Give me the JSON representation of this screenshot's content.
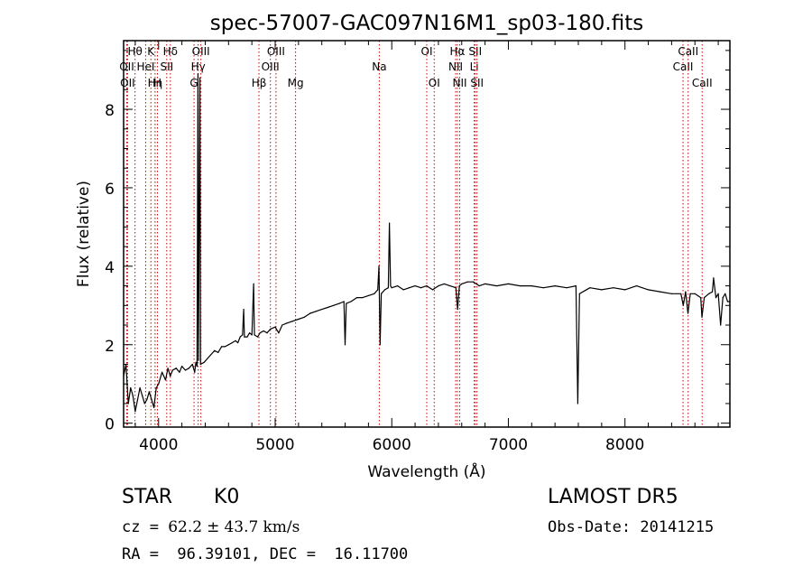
{
  "chart_data": {
    "type": "line",
    "title": "spec-57007-GAC097N16M1_sp03-180.fits",
    "xlabel": "Wavelength (Å)",
    "ylabel": "Flux (relative)",
    "xlim": [
      3700,
      8900
    ],
    "ylim": [
      -0.1,
      9.75
    ],
    "xticks": [
      4000,
      5000,
      6000,
      7000,
      8000
    ],
    "yticks": [
      0,
      2,
      4,
      6,
      8
    ],
    "grid": false,
    "line_color": "#000000",
    "marker_color": "#cc0000",
    "series": [
      {
        "values": [
          [
            3700,
            1.2
          ],
          [
            3720,
            1.5
          ],
          [
            3740,
            0.5
          ],
          [
            3760,
            0.9
          ],
          [
            3780,
            0.7
          ],
          [
            3800,
            0.3
          ],
          [
            3820,
            0.6
          ],
          [
            3840,
            0.9
          ],
          [
            3860,
            0.7
          ],
          [
            3880,
            0.5
          ],
          [
            3900,
            0.6
          ],
          [
            3920,
            0.8
          ],
          [
            3940,
            0.6
          ],
          [
            3960,
            0.4
          ],
          [
            3980,
            0.9
          ],
          [
            4000,
            1.0
          ],
          [
            4030,
            1.3
          ],
          [
            4060,
            1.1
          ],
          [
            4080,
            1.4
          ],
          [
            4100,
            1.2
          ],
          [
            4120,
            1.35
          ],
          [
            4150,
            1.4
          ],
          [
            4180,
            1.3
          ],
          [
            4200,
            1.45
          ],
          [
            4230,
            1.35
          ],
          [
            4260,
            1.4
          ],
          [
            4290,
            1.5
          ],
          [
            4310,
            1.3
          ],
          [
            4320,
            1.55
          ],
          [
            4330,
            1.45
          ],
          [
            4338,
            8.9
          ],
          [
            4342,
            1.6
          ],
          [
            4355,
            8.8
          ],
          [
            4360,
            1.5
          ],
          [
            4390,
            1.55
          ],
          [
            4420,
            1.65
          ],
          [
            4450,
            1.75
          ],
          [
            4480,
            1.85
          ],
          [
            4510,
            1.8
          ],
          [
            4540,
            1.95
          ],
          [
            4570,
            1.95
          ],
          [
            4600,
            2.0
          ],
          [
            4630,
            2.05
          ],
          [
            4660,
            2.1
          ],
          [
            4680,
            2.05
          ],
          [
            4700,
            2.2
          ],
          [
            4720,
            2.25
          ],
          [
            4730,
            2.9
          ],
          [
            4736,
            2.2
          ],
          [
            4760,
            2.2
          ],
          [
            4780,
            2.3
          ],
          [
            4800,
            2.25
          ],
          [
            4815,
            3.55
          ],
          [
            4822,
            2.25
          ],
          [
            4850,
            2.2
          ],
          [
            4870,
            2.3
          ],
          [
            4900,
            2.35
          ],
          [
            4930,
            2.3
          ],
          [
            4960,
            2.4
          ],
          [
            5000,
            2.45
          ],
          [
            5030,
            2.3
          ],
          [
            5060,
            2.5
          ],
          [
            5100,
            2.55
          ],
          [
            5150,
            2.6
          ],
          [
            5200,
            2.65
          ],
          [
            5250,
            2.7
          ],
          [
            5300,
            2.8
          ],
          [
            5350,
            2.85
          ],
          [
            5400,
            2.9
          ],
          [
            5450,
            2.95
          ],
          [
            5500,
            3.0
          ],
          [
            5550,
            3.05
          ],
          [
            5590,
            3.1
          ],
          [
            5600,
            2.0
          ],
          [
            5610,
            3.05
          ],
          [
            5650,
            3.1
          ],
          [
            5700,
            3.2
          ],
          [
            5750,
            3.2
          ],
          [
            5800,
            3.25
          ],
          [
            5850,
            3.3
          ],
          [
            5880,
            3.4
          ],
          [
            5890,
            4.0
          ],
          [
            5900,
            2.0
          ],
          [
            5910,
            3.3
          ],
          [
            5940,
            3.4
          ],
          [
            5970,
            3.45
          ],
          [
            5980,
            5.1
          ],
          [
            5990,
            3.5
          ],
          [
            6000,
            3.45
          ],
          [
            6050,
            3.5
          ],
          [
            6100,
            3.4
          ],
          [
            6150,
            3.45
          ],
          [
            6200,
            3.5
          ],
          [
            6250,
            3.45
          ],
          [
            6300,
            3.5
          ],
          [
            6350,
            3.4
          ],
          [
            6400,
            3.5
          ],
          [
            6450,
            3.55
          ],
          [
            6500,
            3.5
          ],
          [
            6550,
            3.45
          ],
          [
            6565,
            2.9
          ],
          [
            6580,
            3.5
          ],
          [
            6600,
            3.55
          ],
          [
            6650,
            3.6
          ],
          [
            6700,
            3.6
          ],
          [
            6750,
            3.5
          ],
          [
            6800,
            3.55
          ],
          [
            6900,
            3.5
          ],
          [
            7000,
            3.55
          ],
          [
            7100,
            3.5
          ],
          [
            7200,
            3.5
          ],
          [
            7300,
            3.45
          ],
          [
            7400,
            3.5
          ],
          [
            7500,
            3.45
          ],
          [
            7580,
            3.5
          ],
          [
            7595,
            0.5
          ],
          [
            7610,
            3.3
          ],
          [
            7700,
            3.45
          ],
          [
            7800,
            3.4
          ],
          [
            7900,
            3.45
          ],
          [
            8000,
            3.4
          ],
          [
            8100,
            3.5
          ],
          [
            8200,
            3.4
          ],
          [
            8300,
            3.35
          ],
          [
            8400,
            3.3
          ],
          [
            8480,
            3.3
          ],
          [
            8500,
            3.0
          ],
          [
            8520,
            3.35
          ],
          [
            8540,
            2.8
          ],
          [
            8560,
            3.3
          ],
          [
            8600,
            3.3
          ],
          [
            8650,
            3.2
          ],
          [
            8660,
            2.7
          ],
          [
            8680,
            3.2
          ],
          [
            8720,
            3.3
          ],
          [
            8750,
            3.35
          ],
          [
            8760,
            3.7
          ],
          [
            8780,
            3.2
          ],
          [
            8800,
            3.3
          ],
          [
            8820,
            2.5
          ],
          [
            8840,
            3.2
          ],
          [
            8860,
            3.3
          ],
          [
            8880,
            3.1
          ],
          [
            8895,
            3.1
          ]
        ]
      }
    ],
    "markers": [
      {
        "wl": 3727,
        "label": "OII",
        "row": 1
      },
      {
        "wl": 3734,
        "label": "OII",
        "row": 2
      },
      {
        "wl": 3798,
        "label": "Hθ",
        "row": 0
      },
      {
        "wl": 3889,
        "label": "HeI",
        "row": 1
      },
      {
        "wl": 3934,
        "label": "K",
        "row": 0
      },
      {
        "wl": 3970,
        "label": "Hη",
        "row": 2
      },
      {
        "wl": 3990,
        "label": "H",
        "row": 2
      },
      {
        "wl": 4070,
        "label": "SII",
        "row": 1
      },
      {
        "wl": 4101,
        "label": "Hδ",
        "row": 0
      },
      {
        "wl": 4304,
        "label": "G",
        "row": 2
      },
      {
        "wl": 4340,
        "label": "Hγ",
        "row": 1
      },
      {
        "wl": 4363,
        "label": "OIII",
        "row": 0
      },
      {
        "wl": 4861,
        "label": "Hβ",
        "row": 2
      },
      {
        "wl": 4959,
        "label": "OIII",
        "row": 1
      },
      {
        "wl": 5007,
        "label": "OIII",
        "row": 0
      },
      {
        "wl": 5175,
        "label": "Mg",
        "row": 2
      },
      {
        "wl": 5893,
        "label": "Na",
        "row": 1
      },
      {
        "wl": 6300,
        "label": "OI",
        "row": 0
      },
      {
        "wl": 6364,
        "label": "OI",
        "row": 2
      },
      {
        "wl": 6548,
        "label": "NII",
        "row": 1
      },
      {
        "wl": 6563,
        "label": "Hα",
        "row": 0
      },
      {
        "wl": 6583,
        "label": "NII",
        "row": 2
      },
      {
        "wl": 6707,
        "label": "Li",
        "row": 1
      },
      {
        "wl": 6716,
        "label": "SII",
        "row": 0
      },
      {
        "wl": 6731,
        "label": "SII",
        "row": 2
      },
      {
        "wl": 8498,
        "label": "CaII",
        "row": 1
      },
      {
        "wl": 8542,
        "label": "CaII",
        "row": 0
      },
      {
        "wl": 8662,
        "label": "CaII",
        "row": 2
      }
    ]
  },
  "info": {
    "obj_class": "STAR",
    "subclass": "K0",
    "survey": "LAMOST DR5",
    "cz_label": "cz = ",
    "cz_value": "62.2",
    "cz_pm": "±",
    "cz_error": "43.7",
    "cz_unit": "km/s",
    "obs_date": "Obs-Date: 20141215",
    "coords": "RA =  96.39101, DEC =  16.11700"
  }
}
